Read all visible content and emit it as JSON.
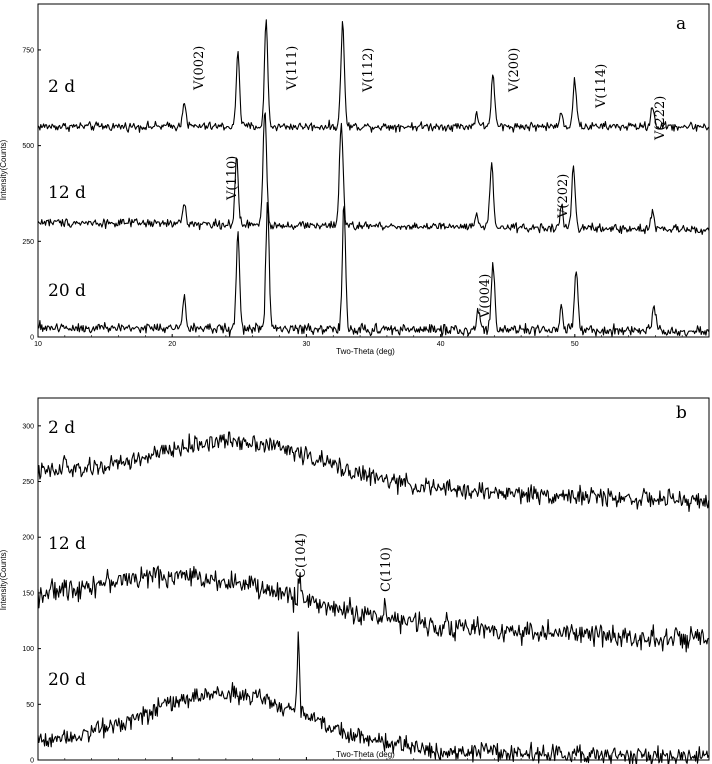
{
  "chart_data": [
    {
      "type": "line",
      "panel": "a",
      "xlabel": "Two-Theta (deg)",
      "ylabel": "Intensity(Counts)",
      "xlim": [
        10,
        60
      ],
      "ylim": [
        0,
        870
      ],
      "xticks": [
        10,
        20,
        30,
        40,
        50
      ],
      "yticks": [
        0,
        250,
        500,
        750
      ],
      "grid": false,
      "legend": "none",
      "series": [
        {
          "name": "2 d",
          "baseline": 550,
          "noise": 7,
          "slope": 0,
          "hump": null,
          "peaks": [
            [
              20.9,
              70,
              0.12
            ],
            [
              24.9,
              200,
              0.12
            ],
            [
              27.0,
              280,
              0.12
            ],
            [
              32.7,
              270,
              0.13
            ],
            [
              42.7,
              35,
              0.12
            ],
            [
              43.9,
              130,
              0.13
            ],
            [
              49.0,
              45,
              0.1
            ],
            [
              50.0,
              120,
              0.13
            ],
            [
              55.8,
              50,
              0.13
            ]
          ]
        },
        {
          "name": "12 d",
          "baseline": 300,
          "noise": 7,
          "slope": -0.4,
          "hump": null,
          "peaks": [
            [
              20.9,
              55,
              0.12
            ],
            [
              24.8,
              170,
              0.12
            ],
            [
              26.9,
              300,
              0.13
            ],
            [
              32.6,
              270,
              0.13
            ],
            [
              42.7,
              30,
              0.12
            ],
            [
              43.8,
              160,
              0.13
            ],
            [
              49.0,
              60,
              0.1
            ],
            [
              49.9,
              160,
              0.13
            ],
            [
              55.8,
              50,
              0.13
            ]
          ]
        },
        {
          "name": "20 d",
          "baseline": 25,
          "noise": 9,
          "slope": -0.2,
          "hump": null,
          "peaks": [
            [
              20.9,
              75,
              0.12
            ],
            [
              24.9,
              250,
              0.12
            ],
            [
              27.1,
              330,
              0.12
            ],
            [
              32.8,
              320,
              0.12
            ],
            [
              42.8,
              50,
              0.12
            ],
            [
              43.9,
              175,
              0.13
            ],
            [
              49.0,
              65,
              0.1
            ],
            [
              50.1,
              150,
              0.13
            ],
            [
              55.9,
              60,
              0.13
            ]
          ]
        }
      ],
      "annotations": [
        "V(002)",
        "V(111)",
        "V(112)",
        "V(200)",
        "V(114)",
        "V(222)",
        "V(110)",
        "V(202)",
        "V(004)"
      ]
    },
    {
      "type": "line",
      "panel": "b",
      "xlabel": "Two-Theta (deg)",
      "ylabel": "Intensity(Counts)",
      "xlim": [
        10,
        60
      ],
      "ylim": [
        0,
        325
      ],
      "xticks": [
        10,
        20,
        30,
        40,
        50
      ],
      "yticks": [
        0,
        50,
        100,
        150,
        200,
        250,
        300
      ],
      "grid": false,
      "legend": "none",
      "series": [
        {
          "name": "2 d",
          "baseline": 257,
          "noise": 5,
          "slope": -0.5,
          "hump": [
            25,
            6,
            37
          ],
          "peaks": [
            [
              12.0,
              15,
              0.08
            ]
          ]
        },
        {
          "name": "12 d",
          "baseline": 135,
          "noise": 6,
          "slope": -0.55,
          "hump": [
            21,
            8,
            36
          ],
          "peaks": [
            [
              29.5,
              20,
              0.1
            ],
            [
              35.9,
              15,
              0.1
            ]
          ]
        },
        {
          "name": "20 d",
          "baseline": 15,
          "noise": 5,
          "slope": -0.25,
          "hump": [
            24,
            6,
            48
          ],
          "peaks": [
            [
              29.4,
              75,
              0.08
            ]
          ]
        }
      ],
      "annotations": [
        "C(104)",
        "C(110)"
      ]
    }
  ],
  "panel_a": {
    "letter": "a",
    "sample_labels": [
      "2 d",
      "12 d",
      "20 d"
    ],
    "peak_labels": [
      "V(002)",
      "V(111)",
      "V(112)",
      "V(200)",
      "V(114)",
      "V(222)",
      "V(110)",
      "V(202)",
      "V(004)"
    ]
  },
  "panel_b": {
    "letter": "b",
    "sample_labels": [
      "2 d",
      "12 d",
      "20 d"
    ],
    "peak_labels": [
      "C(104)",
      "C(110)"
    ]
  }
}
